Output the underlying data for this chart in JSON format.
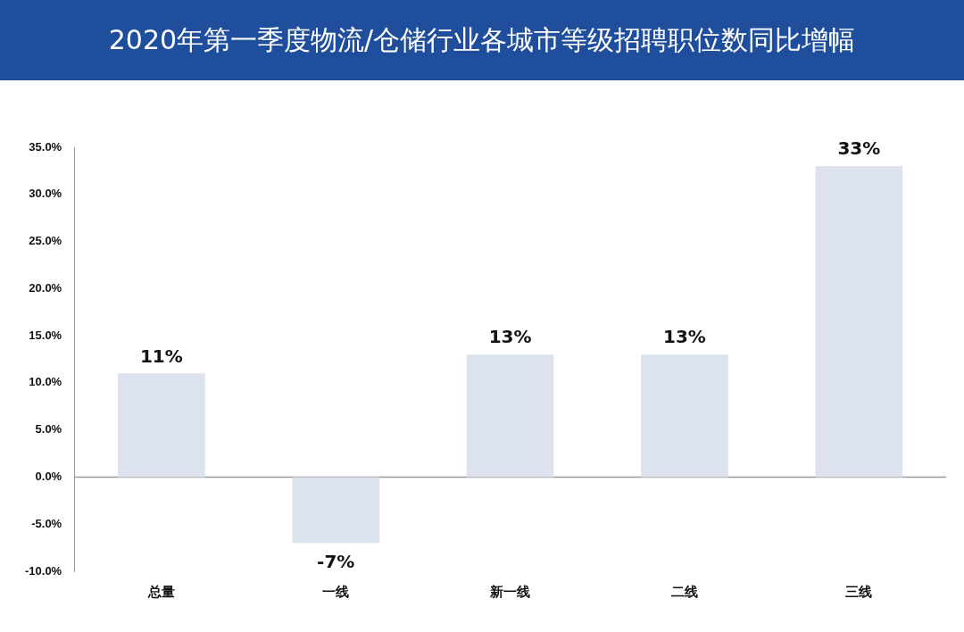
{
  "chart_data": {
    "type": "bar",
    "title": "2020年第一季度物流/仓储行业各城市等级招聘职位数同比增幅",
    "categories": [
      "总量",
      "一线",
      "新一线",
      "二线",
      "三线"
    ],
    "series": [
      {
        "color": "#dce3ee",
        "values": [
          11,
          -7,
          13,
          13,
          33
        ]
      }
    ],
    "value_labels": [
      "11%",
      "-7%",
      "13%",
      "13%",
      "33%"
    ],
    "ylim": [
      -10,
      35
    ],
    "yticks": [
      {
        "value": -10,
        "label": "-10.0%"
      },
      {
        "value": -5,
        "label": "-5.0%"
      },
      {
        "value": 0,
        "label": "0.0%"
      },
      {
        "value": 5,
        "label": "5.0%"
      },
      {
        "value": 10,
        "label": "10.0%"
      },
      {
        "value": 15,
        "label": "15.0%"
      },
      {
        "value": 20,
        "label": "20.0%"
      },
      {
        "value": 25,
        "label": "25.0%"
      },
      {
        "value": 30,
        "label": "30.0%"
      },
      {
        "value": 35,
        "label": "35.0%"
      }
    ],
    "ref_lines": [
      {
        "axis": "y",
        "value": 0,
        "color": "#999999"
      }
    ],
    "grid": false,
    "legend": false
  }
}
